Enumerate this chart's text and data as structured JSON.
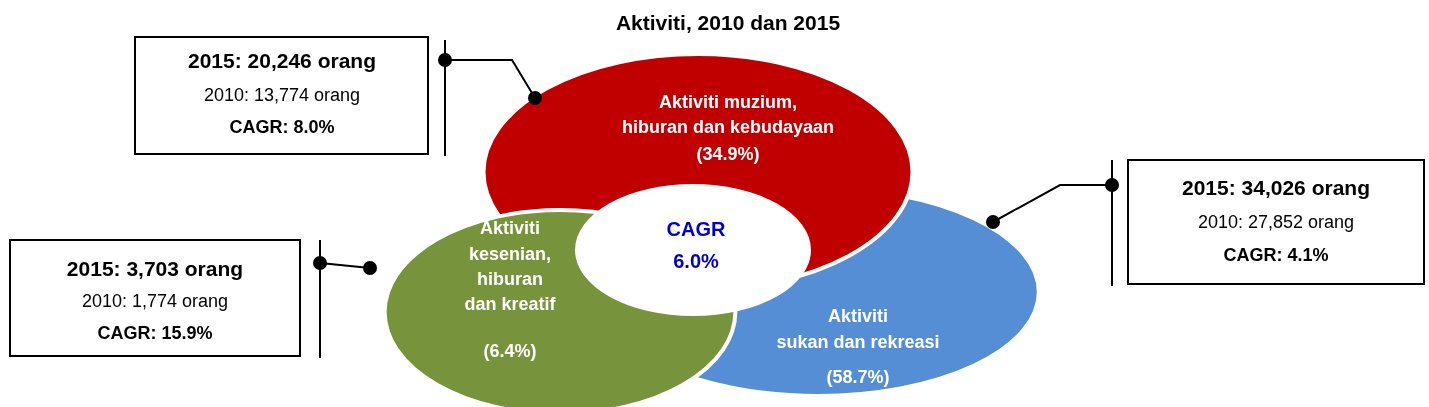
{
  "chart_data": {
    "type": "other",
    "title": "Aktiviti, 2010 dan 2015",
    "categories": [
      "Aktiviti muzium,\nhiburan dan kebudayaan",
      "Aktiviti\nsukan dan rekreasi",
      "Aktiviti\nkesenian,\nhiburan\ndan kreatif"
    ],
    "values": [
      34.9,
      58.7,
      6.4
    ],
    "value_labels": [
      "(34.9%)",
      "(58.7%)",
      "(6.4%)"
    ],
    "colors": [
      "#c00000",
      "#558ed5",
      "#77933c"
    ],
    "annotations": [
      "2015: 20,246 orang",
      "2010: 13,774 orang",
      "CAGR: 8.0%",
      "2015: 34,026 orang",
      "2010: 27,852 orang",
      "CAGR: 4.1%",
      "2015: 3,703 orang",
      "2010: 1,774 orang",
      "CAGR: 15.9%",
      "CAGR",
      "6.0%"
    ]
  }
}
